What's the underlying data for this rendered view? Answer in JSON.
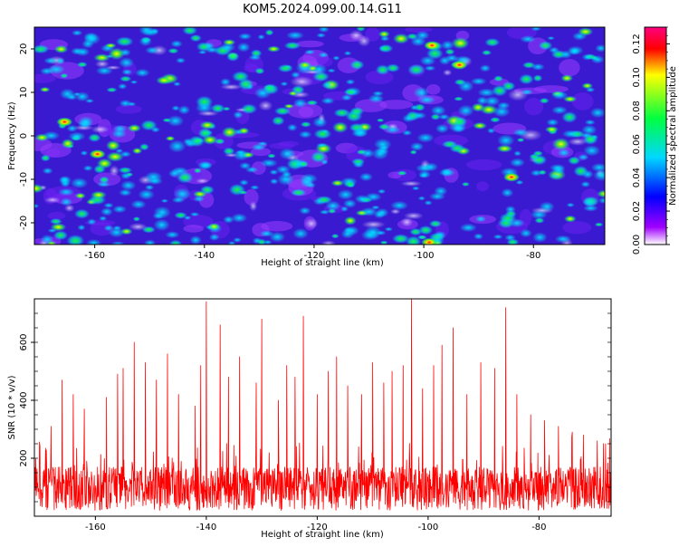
{
  "title": "KOM5.2024.099.00.14.G11",
  "chart_data": [
    {
      "type": "heatmap",
      "xlabel": "Height of straight line (km)",
      "ylabel": "Frequency (Hz)",
      "xlim": [
        -171,
        -67
      ],
      "ylim": [
        -25,
        25
      ],
      "xticks": [
        -160,
        -140,
        -120,
        -100,
        -80
      ],
      "yticks": [
        -20,
        -10,
        0,
        10,
        20
      ],
      "colorbar": {
        "label": "Normalized spectral amplitude",
        "range": [
          0.0,
          0.13
        ],
        "ticks": [
          "0.00",
          "0.02",
          "0.04",
          "0.06",
          "0.08",
          "0.10",
          "0.12"
        ],
        "colormap": [
          "#ffffff",
          "#a000ff",
          "#0000ff",
          "#00d8ff",
          "#00ff40",
          "#ffff00",
          "#ff0000",
          "#ff0080"
        ]
      },
      "notable_peaks": [
        {
          "x": -98.5,
          "y": 20.8,
          "value": 0.13
        },
        {
          "x": -93.5,
          "y": 16.3,
          "value": 0.12
        },
        {
          "x": -99.0,
          "y": -24.5,
          "value": 0.12
        },
        {
          "x": -165.5,
          "y": 3.2,
          "value": 0.11
        },
        {
          "x": -159.5,
          "y": -4.2,
          "value": 0.11
        },
        {
          "x": -84.0,
          "y": -9.5,
          "value": 0.11
        }
      ]
    },
    {
      "type": "line",
      "xlabel": "Height of straight line (km)",
      "ylabel": "SNR (10 * v/v)",
      "xlim": [
        -171,
        -67
      ],
      "ylim": [
        0,
        750
      ],
      "xticks": [
        -160,
        -140,
        -120,
        -100,
        -80
      ],
      "yticks": [
        200,
        400,
        600
      ],
      "color": "#ff0000",
      "noise_floor": 150,
      "peaks": [
        {
          "x": -170.0,
          "y": 240
        },
        {
          "x": -168.0,
          "y": 310
        },
        {
          "x": -166.0,
          "y": 470
        },
        {
          "x": -164.0,
          "y": 420
        },
        {
          "x": -162.0,
          "y": 370
        },
        {
          "x": -158.0,
          "y": 410
        },
        {
          "x": -156.0,
          "y": 490
        },
        {
          "x": -155.0,
          "y": 510
        },
        {
          "x": -153.0,
          "y": 600
        },
        {
          "x": -151.0,
          "y": 530
        },
        {
          "x": -149.0,
          "y": 470
        },
        {
          "x": -147.0,
          "y": 560
        },
        {
          "x": -145.0,
          "y": 420
        },
        {
          "x": -142.0,
          "y": 380
        },
        {
          "x": -141.0,
          "y": 520
        },
        {
          "x": -140.0,
          "y": 740
        },
        {
          "x": -137.5,
          "y": 660
        },
        {
          "x": -136.0,
          "y": 480
        },
        {
          "x": -134.0,
          "y": 550
        },
        {
          "x": -131.0,
          "y": 460
        },
        {
          "x": -130.0,
          "y": 680
        },
        {
          "x": -127.0,
          "y": 400
        },
        {
          "x": -125.5,
          "y": 520
        },
        {
          "x": -124.0,
          "y": 480
        },
        {
          "x": -122.5,
          "y": 690
        },
        {
          "x": -120.0,
          "y": 420
        },
        {
          "x": -118.0,
          "y": 500
        },
        {
          "x": -116.5,
          "y": 550
        },
        {
          "x": -114.5,
          "y": 450
        },
        {
          "x": -112.0,
          "y": 420
        },
        {
          "x": -110.0,
          "y": 530
        },
        {
          "x": -108.0,
          "y": 460
        },
        {
          "x": -106.5,
          "y": 500
        },
        {
          "x": -104.5,
          "y": 520
        },
        {
          "x": -103.0,
          "y": 750
        },
        {
          "x": -101.0,
          "y": 440
        },
        {
          "x": -99.0,
          "y": 520
        },
        {
          "x": -97.5,
          "y": 590
        },
        {
          "x": -95.5,
          "y": 650
        },
        {
          "x": -93.0,
          "y": 420
        },
        {
          "x": -90.5,
          "y": 530
        },
        {
          "x": -88.0,
          "y": 510
        },
        {
          "x": -86.0,
          "y": 720
        },
        {
          "x": -84.0,
          "y": 420
        },
        {
          "x": -81.5,
          "y": 350
        },
        {
          "x": -79.0,
          "y": 330
        },
        {
          "x": -76.5,
          "y": 310
        },
        {
          "x": -74.0,
          "y": 290
        },
        {
          "x": -72.0,
          "y": 280
        },
        {
          "x": -69.5,
          "y": 260
        },
        {
          "x": -68.0,
          "y": 250
        }
      ]
    }
  ]
}
